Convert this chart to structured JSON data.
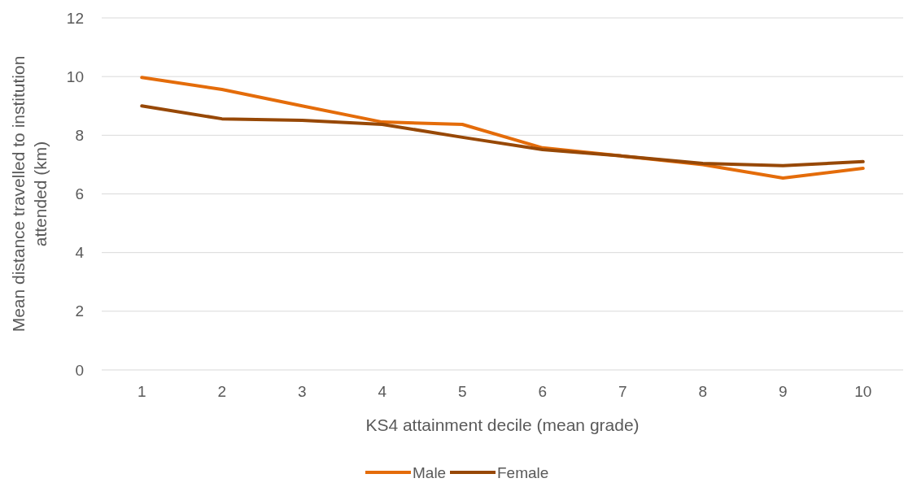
{
  "chart_data": {
    "type": "line",
    "xlabel": "KS4 attainment decile (mean grade)",
    "ylabel": "Mean distance travelled to institution attended (km)",
    "categories": [
      "1",
      "2",
      "3",
      "4",
      "5",
      "6",
      "7",
      "8",
      "9",
      "10"
    ],
    "ylim": [
      0,
      12
    ],
    "yticks": [
      0,
      2,
      4,
      6,
      8,
      10,
      12
    ],
    "grid": "y",
    "legend": "bottom",
    "series": [
      {
        "name": "Male",
        "color": "#e46c0a",
        "values": [
          9.97,
          9.56,
          9.0,
          8.45,
          8.37,
          7.57,
          7.29,
          7.0,
          6.54,
          6.87
        ]
      },
      {
        "name": "Female",
        "color": "#974806",
        "values": [
          9.0,
          8.56,
          8.51,
          8.37,
          7.93,
          7.51,
          7.29,
          7.04,
          6.96,
          7.1
        ]
      }
    ]
  }
}
